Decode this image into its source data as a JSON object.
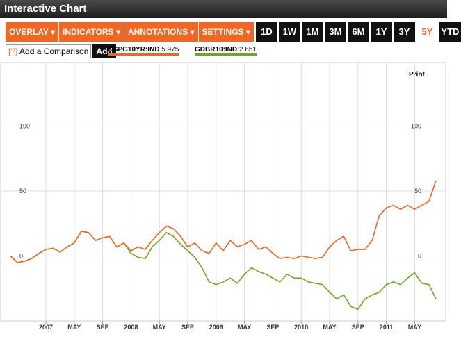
{
  "ui": {
    "title": "Interactive Chart",
    "menus": [
      "OVERLAY ▾",
      "INDICATORS ▾",
      "ANNOTATIONS ▾",
      "SETTINGS ▾"
    ],
    "ranges": [
      "1D",
      "1W",
      "1M",
      "3M",
      "6M",
      "1Y",
      "3Y",
      "5Y",
      "YTD"
    ],
    "selected_range": "5Y",
    "help": "[?]",
    "comparison": "Add a Comparison",
    "add": "Add",
    "print": "Print"
  },
  "chart_data": {
    "type": "line",
    "categories": [
      null,
      null,
      null,
      null,
      null,
      "2007",
      null,
      null,
      null,
      "MAY",
      null,
      null,
      null,
      "SEP",
      null,
      null,
      null,
      "2008",
      null,
      null,
      null,
      "MAY",
      null,
      null,
      null,
      "SEP",
      null,
      null,
      null,
      "2009",
      null,
      null,
      null,
      "MAY",
      null,
      null,
      null,
      "SEP",
      null,
      null,
      null,
      "2010",
      null,
      null,
      null,
      "MAY",
      null,
      null,
      null,
      "SEP",
      null,
      null,
      null,
      "2011",
      null,
      null,
      null,
      "MAY",
      null,
      null,
      null
    ],
    "series": [
      {
        "name": "GSPG10YR:IND",
        "legend_value": 5.975,
        "color": "#f26522",
        "values": [
          0,
          -5,
          -4,
          -2,
          2,
          5,
          6,
          3,
          7,
          10,
          19,
          18,
          12,
          14,
          15,
          7,
          10,
          4,
          7,
          5,
          12,
          18,
          23,
          21,
          15,
          7,
          10,
          4,
          2,
          10,
          4,
          12,
          7,
          9,
          12,
          5,
          7,
          2,
          -2,
          -1,
          -2,
          0,
          -1,
          -2,
          -1,
          7,
          12,
          15,
          4,
          5,
          5,
          12,
          31,
          37,
          39,
          36,
          39,
          36,
          39,
          42,
          58
        ]
      },
      {
        "name": "GDBR10:IND",
        "legend_value": 2.651,
        "color": "#6aaa1e",
        "values": [
          0,
          -5,
          -4,
          -2,
          2,
          5,
          6,
          3,
          7,
          10,
          19,
          18,
          12,
          14,
          15,
          7,
          10,
          2,
          -1,
          -2,
          7,
          12,
          18,
          15,
          9,
          4,
          -1,
          -9,
          -20,
          -22,
          -20,
          -17,
          -21,
          -14,
          -9,
          -12,
          -14,
          -17,
          -20,
          -14,
          -17,
          -17,
          -20,
          -21,
          -22,
          -28,
          -33,
          -30,
          -39,
          -41,
          -33,
          -30,
          -28,
          -22,
          -20,
          -22,
          -17,
          -13,
          -21,
          -22,
          -33
        ]
      }
    ],
    "ylim": [
      -50,
      150
    ],
    "yticks": [
      0,
      50,
      100
    ],
    "grid": true
  }
}
